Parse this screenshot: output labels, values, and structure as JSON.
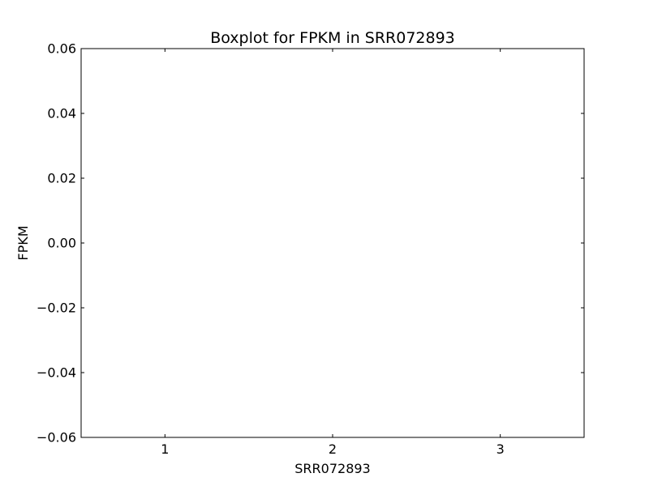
{
  "chart_data": {
    "type": "boxplot",
    "title": "Boxplot for FPKM in SRR072893",
    "xlabel": "SRR072893",
    "ylabel": "FPKM",
    "categories": [
      "1",
      "2",
      "3"
    ],
    "x": [
      1,
      2,
      3
    ],
    "xlim": [
      0.5,
      3.5
    ],
    "ylim": [
      -0.06,
      0.06
    ],
    "yticks": [
      -0.06,
      -0.04,
      -0.02,
      0.0,
      0.02,
      0.04,
      0.06
    ],
    "ytick_labels": [
      "−0.06",
      "−0.04",
      "−0.02",
      "0.00",
      "0.02",
      "0.04",
      "0.06"
    ],
    "series": [],
    "grid": false,
    "legend": "none",
    "colors": {
      "axes": "#000000",
      "background": "#ffffff"
    }
  }
}
